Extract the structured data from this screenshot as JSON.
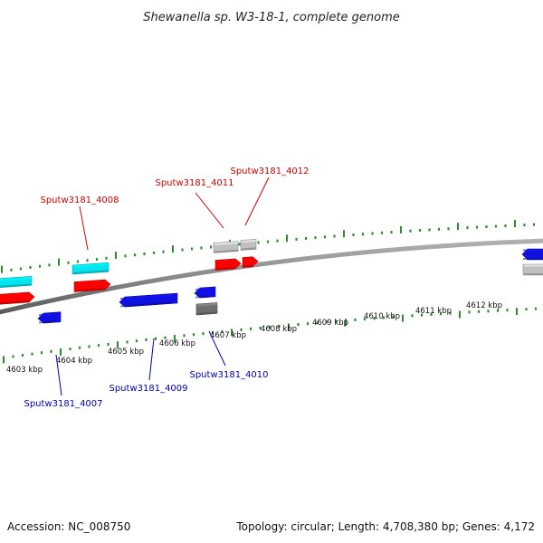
{
  "title": "Shewanella sp. W3-18-1, complete genome",
  "footer": {
    "accession": "Accession: NC_008750",
    "summary": "Topology: circular; Length: 4,708,380 bp; Genes: 4,172"
  },
  "colors": {
    "background": "#ffffff",
    "backbone": "#8a8a8a",
    "tick": "#2e8b2e",
    "cyan_gene": "#00e5ee",
    "red_gene": "#ff0000",
    "blue_gene": "#1010e0",
    "gray_gene": "#c0c0c0",
    "dark_gray_gene": "#6e6e6e",
    "label_red": "#d40000",
    "label_blue": "#0000c0"
  },
  "ticks": [
    {
      "label": "4603 kbp"
    },
    {
      "label": "4604 kbp"
    },
    {
      "label": "4605 kbp"
    },
    {
      "label": "4606 kbp"
    },
    {
      "label": "4607 kbp"
    },
    {
      "label": "4608 kbp"
    },
    {
      "label": "4609 kbp"
    },
    {
      "label": "4610 kbp"
    },
    {
      "label": "4611 kbp"
    },
    {
      "label": "4612 kbp"
    }
  ],
  "gene_labels": [
    {
      "text": "Sputw3181_4008",
      "color": "label_red"
    },
    {
      "text": "Sputw3181_4011",
      "color": "label_red"
    },
    {
      "text": "Sputw3181_4012",
      "color": "label_red"
    },
    {
      "text": "Sputw3181_4007",
      "color": "label_blue"
    },
    {
      "text": "Sputw3181_4009",
      "color": "label_blue"
    },
    {
      "text": "Sputw3181_4010",
      "color": "label_blue"
    }
  ]
}
